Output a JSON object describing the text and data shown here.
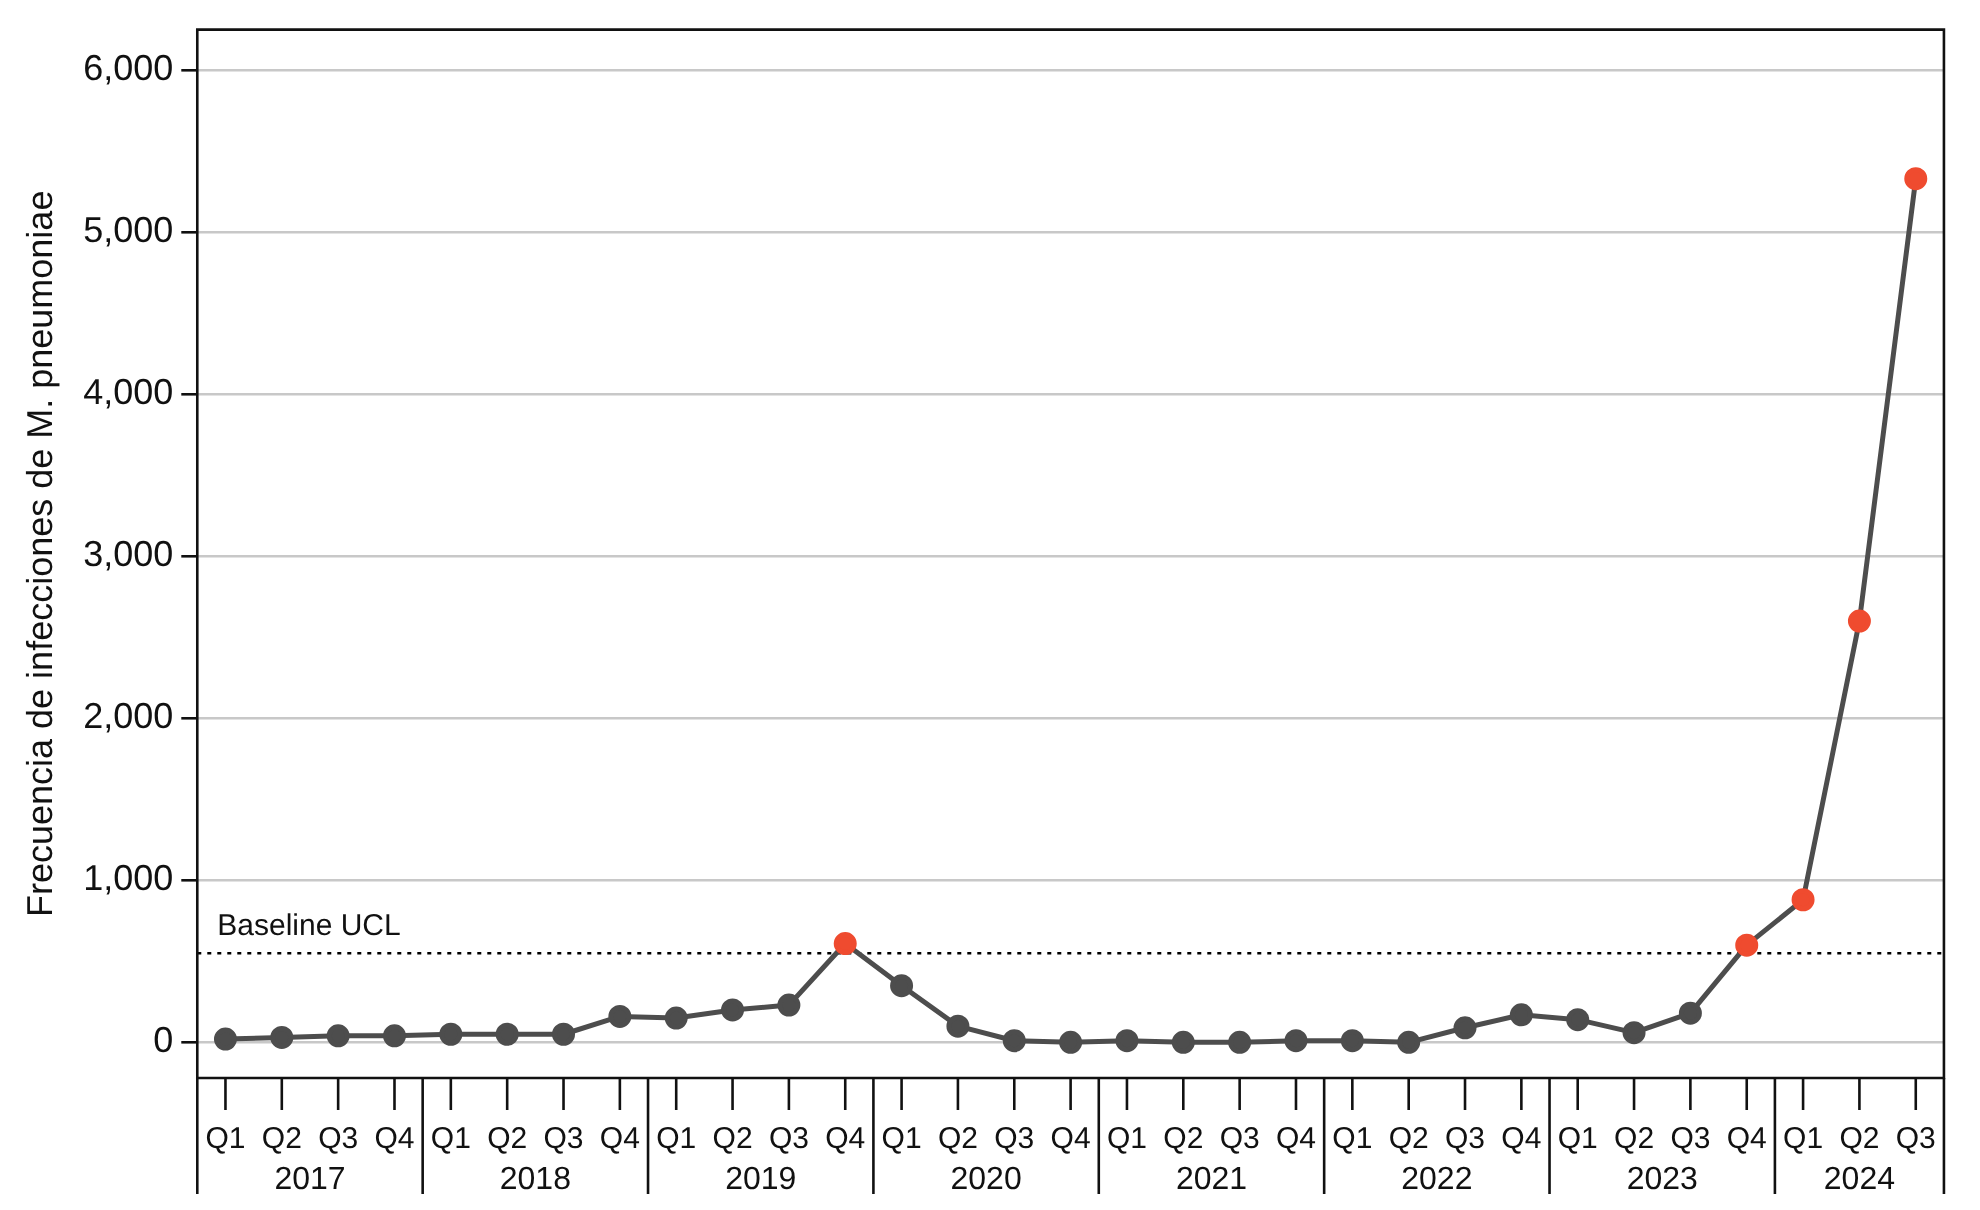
{
  "chart_data": {
    "type": "line",
    "ylabel": "Frecuencia de infecciones de M. pneumoniae",
    "categories": [
      "Q1",
      "Q2",
      "Q3",
      "Q4",
      "Q1",
      "Q2",
      "Q3",
      "Q4",
      "Q1",
      "Q2",
      "Q3",
      "Q4",
      "Q1",
      "Q2",
      "Q3",
      "Q4",
      "Q1",
      "Q2",
      "Q3",
      "Q4",
      "Q1",
      "Q2",
      "Q3",
      "Q4",
      "Q1",
      "Q2",
      "Q3",
      "Q4",
      "Q1",
      "Q2",
      "Q3"
    ],
    "annotations": [
      "2017",
      "2018",
      "2019",
      "2020",
      "2021",
      "2022",
      "2023",
      "2024"
    ],
    "series": [
      {
        "color": "#4d4d4d",
        "values": [
          20,
          30,
          40,
          40,
          50,
          50,
          50,
          160,
          150,
          200,
          230,
          610,
          350,
          100,
          10,
          0,
          10,
          0,
          0,
          10,
          10,
          0,
          90,
          170,
          140,
          60,
          180,
          600,
          880,
          2600,
          5330
        ],
        "colors": [
          "#4d4d4d",
          "#4d4d4d",
          "#4d4d4d",
          "#4d4d4d",
          "#4d4d4d",
          "#4d4d4d",
          "#4d4d4d",
          "#4d4d4d",
          "#4d4d4d",
          "#4d4d4d",
          "#4d4d4d",
          "#ef4b2f",
          "#4d4d4d",
          "#4d4d4d",
          "#4d4d4d",
          "#4d4d4d",
          "#4d4d4d",
          "#4d4d4d",
          "#4d4d4d",
          "#4d4d4d",
          "#4d4d4d",
          "#4d4d4d",
          "#4d4d4d",
          "#4d4d4d",
          "#4d4d4d",
          "#4d4d4d",
          "#4d4d4d",
          "#ef4b2f",
          "#ef4b2f",
          "#ef4b2f",
          "#ef4b2f"
        ]
      }
    ],
    "ylim": [
      -220,
      6250
    ],
    "yticks": [
      {
        "value": 0,
        "label": "0"
      },
      {
        "value": 1000,
        "label": "1,000"
      },
      {
        "value": 2000,
        "label": "2,000"
      },
      {
        "value": 3000,
        "label": "3,000"
      },
      {
        "value": 4000,
        "label": "4,000"
      },
      {
        "value": 5000,
        "label": "5,000"
      },
      {
        "value": 6000,
        "label": "6,000"
      }
    ],
    "ref_lines": [
      {
        "axis": "y",
        "value": 550,
        "label": "Baseline UCL",
        "color": "#000000",
        "line_style": "dotted"
      }
    ],
    "grid": "y",
    "legend": false,
    "marker": "circle",
    "line_style": "solid"
  }
}
